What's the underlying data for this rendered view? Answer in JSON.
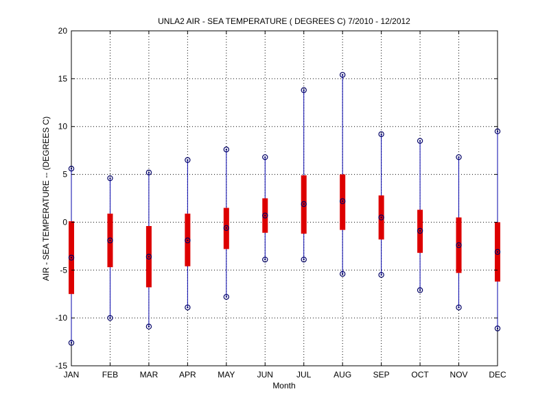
{
  "chart_data": {
    "type": "box",
    "title": "UNLA2  AIR - SEA TEMPERATURE ( DEGREES C) 7/2010 - 12/2012",
    "xlabel": "Month",
    "ylabel": "AIR - SEA TEMPERATURE -- (DEGREES C)",
    "categories": [
      "JAN",
      "FEB",
      "MAR",
      "APR",
      "MAY",
      "JUN",
      "JUL",
      "AUG",
      "SEP",
      "OCT",
      "NOV",
      "DEC"
    ],
    "ylim": [
      -15,
      20
    ],
    "yticks": [
      -15,
      -10,
      -5,
      0,
      5,
      10,
      15,
      20
    ],
    "grid": true,
    "series": [
      {
        "min": [
          -12.6,
          -10.0,
          -10.9,
          -8.9,
          -7.8,
          -3.9,
          -3.9,
          -5.4,
          -5.5,
          -7.1,
          -8.9,
          -11.1
        ],
        "q1": [
          -7.5,
          -4.7,
          -6.8,
          -4.6,
          -2.8,
          -1.1,
          -1.2,
          -0.8,
          -1.8,
          -3.2,
          -5.3,
          -6.2
        ],
        "median": [
          -3.7,
          -1.9,
          -3.6,
          -1.9,
          -0.6,
          0.7,
          1.9,
          2.2,
          0.5,
          -0.9,
          -2.4,
          -3.1
        ],
        "q3": [
          0.1,
          0.9,
          -0.4,
          0.9,
          1.5,
          2.5,
          4.9,
          5.0,
          2.8,
          1.3,
          0.5,
          0.0
        ],
        "max": [
          5.6,
          4.6,
          5.2,
          6.5,
          7.6,
          6.8,
          13.8,
          15.4,
          9.2,
          8.5,
          6.8,
          9.5
        ]
      }
    ],
    "colors": {
      "whisker": "#0000aa",
      "box": "#dd0000",
      "marker": "#000066",
      "grid": "#000000",
      "axis": "#000000"
    }
  }
}
